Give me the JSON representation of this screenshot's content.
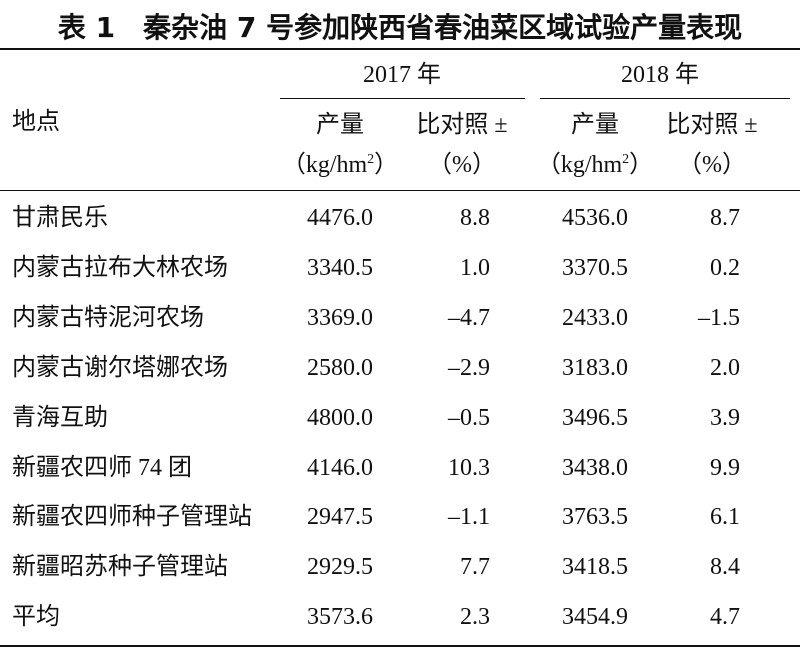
{
  "title": "表 1　秦杂油 7 号参加陕西省春油菜区域试验产量表现",
  "header": {
    "location": "地点",
    "groups": [
      {
        "year": "2017 年",
        "columns": [
          {
            "name": "产量",
            "unit": "（kg/hm",
            "unit_sup": "2",
            "unit_end": "）"
          },
          {
            "name": "比对照 ±",
            "unit": "（%）"
          }
        ]
      },
      {
        "year": "2018 年",
        "columns": [
          {
            "name": "产量",
            "unit": "（kg/hm",
            "unit_sup": "2",
            "unit_end": "）"
          },
          {
            "name": "比对照 ±",
            "unit": "（%）"
          }
        ]
      }
    ]
  },
  "table": {
    "rows": [
      [
        "甘肃民乐",
        "4476.0",
        "8.8",
        "4536.0",
        "8.7"
      ],
      [
        "内蒙古拉布大林农场",
        "3340.5",
        "1.0",
        "3370.5",
        "0.2"
      ],
      [
        "内蒙古特泥河农场",
        "3369.0",
        "–4.7",
        "2433.0",
        "–1.5"
      ],
      [
        "内蒙古谢尔塔娜农场",
        "2580.0",
        "–2.9",
        "3183.0",
        "2.0"
      ],
      [
        "青海互助",
        "4800.0",
        "–0.5",
        "3496.5",
        "3.9"
      ],
      [
        "新疆农四师 74 团",
        "4146.0",
        "10.3",
        "3438.0",
        "9.9"
      ],
      [
        "新疆农四师种子管理站",
        "2947.5",
        "–1.1",
        "3763.5",
        "6.1"
      ],
      [
        "新疆昭苏种子管理站",
        "2929.5",
        "7.7",
        "3418.5",
        "8.4"
      ],
      [
        "平均",
        "3573.6",
        "2.3",
        "3454.9",
        "4.7"
      ]
    ]
  }
}
